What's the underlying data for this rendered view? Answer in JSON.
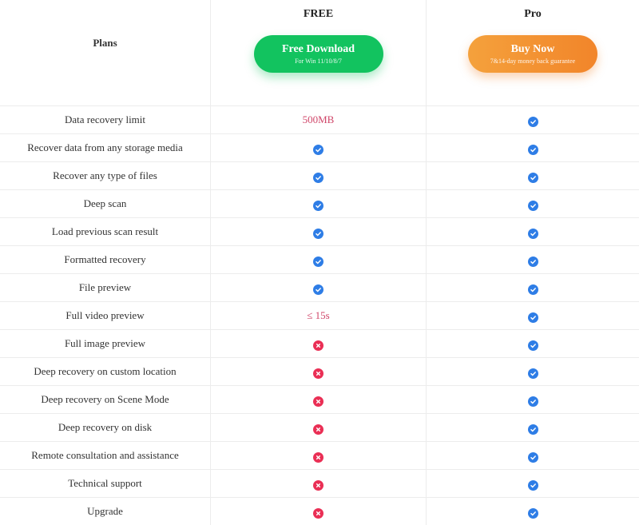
{
  "header": {
    "plans_label": "Plans",
    "free": {
      "title": "FREE",
      "button": "Free Download",
      "sub": "For Win 11/10/8/7"
    },
    "pro": {
      "title": "Pro",
      "button": "Buy Now",
      "sub": "7&14-day money back guarantee"
    }
  },
  "colors": {
    "check": "#2e7de6",
    "cross": "#ea2f55",
    "free_button": "#12c35f",
    "pro_button": "#f2852a",
    "limit_text": "#d0476a"
  },
  "rows": [
    {
      "feature": "Data recovery limit",
      "free": "500MB",
      "pro": "check"
    },
    {
      "feature": "Recover data from any storage media",
      "free": "check",
      "pro": "check"
    },
    {
      "feature": "Recover any type of files",
      "free": "check",
      "pro": "check"
    },
    {
      "feature": "Deep scan",
      "free": "check",
      "pro": "check"
    },
    {
      "feature": "Load previous scan result",
      "free": "check",
      "pro": "check"
    },
    {
      "feature": "Formatted recovery",
      "free": "check",
      "pro": "check"
    },
    {
      "feature": "File preview",
      "free": "check",
      "pro": "check"
    },
    {
      "feature": "Full video preview",
      "free": "≤ 15s",
      "pro": "check"
    },
    {
      "feature": "Full image preview",
      "free": "cross",
      "pro": "check"
    },
    {
      "feature": "Deep recovery on custom location",
      "free": "cross",
      "pro": "check"
    },
    {
      "feature": "Deep recovery on Scene Mode",
      "free": "cross",
      "pro": "check"
    },
    {
      "feature": "Deep recovery on disk",
      "free": "cross",
      "pro": "check"
    },
    {
      "feature": "Remote consultation and assistance",
      "free": "cross",
      "pro": "check"
    },
    {
      "feature": "Technical support",
      "free": "cross",
      "pro": "check"
    },
    {
      "feature": "Upgrade",
      "free": "cross",
      "pro": "check"
    }
  ]
}
